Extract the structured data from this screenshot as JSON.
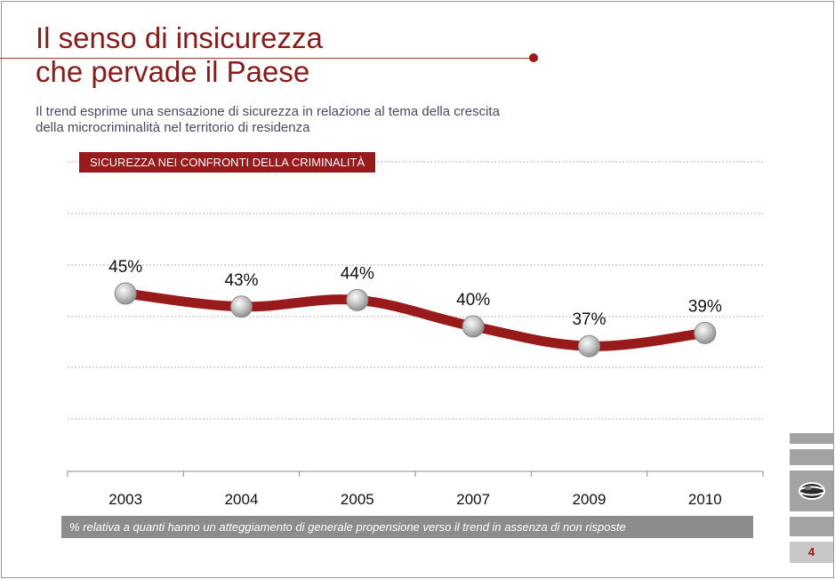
{
  "slide": {
    "title_line1": "Il senso di insicurezza",
    "title_line2": "che pervade il Paese",
    "subtitle_line1": "Il trend esprime una sensazione di sicurezza in relazione al tema della crescita",
    "subtitle_line2": "della microcriminalità nel territorio di residenza",
    "note": "% relativa a quanti hanno un atteggiamento di generale propensione verso  il trend in assenza di non risposte",
    "page_number": "4"
  },
  "colors": {
    "accent": "#991a1a",
    "title": "#8b1a1a",
    "grey_panel": "#a3a3a3"
  },
  "chart_data": {
    "type": "line",
    "title": "SICUREZZA NEI CONFRONTI DELLA CRIMINALITÀ",
    "categories": [
      "2003",
      "2004",
      "2005",
      "2007",
      "2009",
      "2010"
    ],
    "series": [
      {
        "values": [
          45,
          43,
          44,
          40,
          37,
          39
        ]
      }
    ],
    "data_labels": [
      "45%",
      "43%",
      "44%",
      "40%",
      "37%",
      "39%"
    ],
    "ylim": [
      20,
      65
    ],
    "gridlines": [
      30,
      40,
      50,
      60,
      70
    ],
    "grid": true,
    "line_color": "#991a1a"
  }
}
